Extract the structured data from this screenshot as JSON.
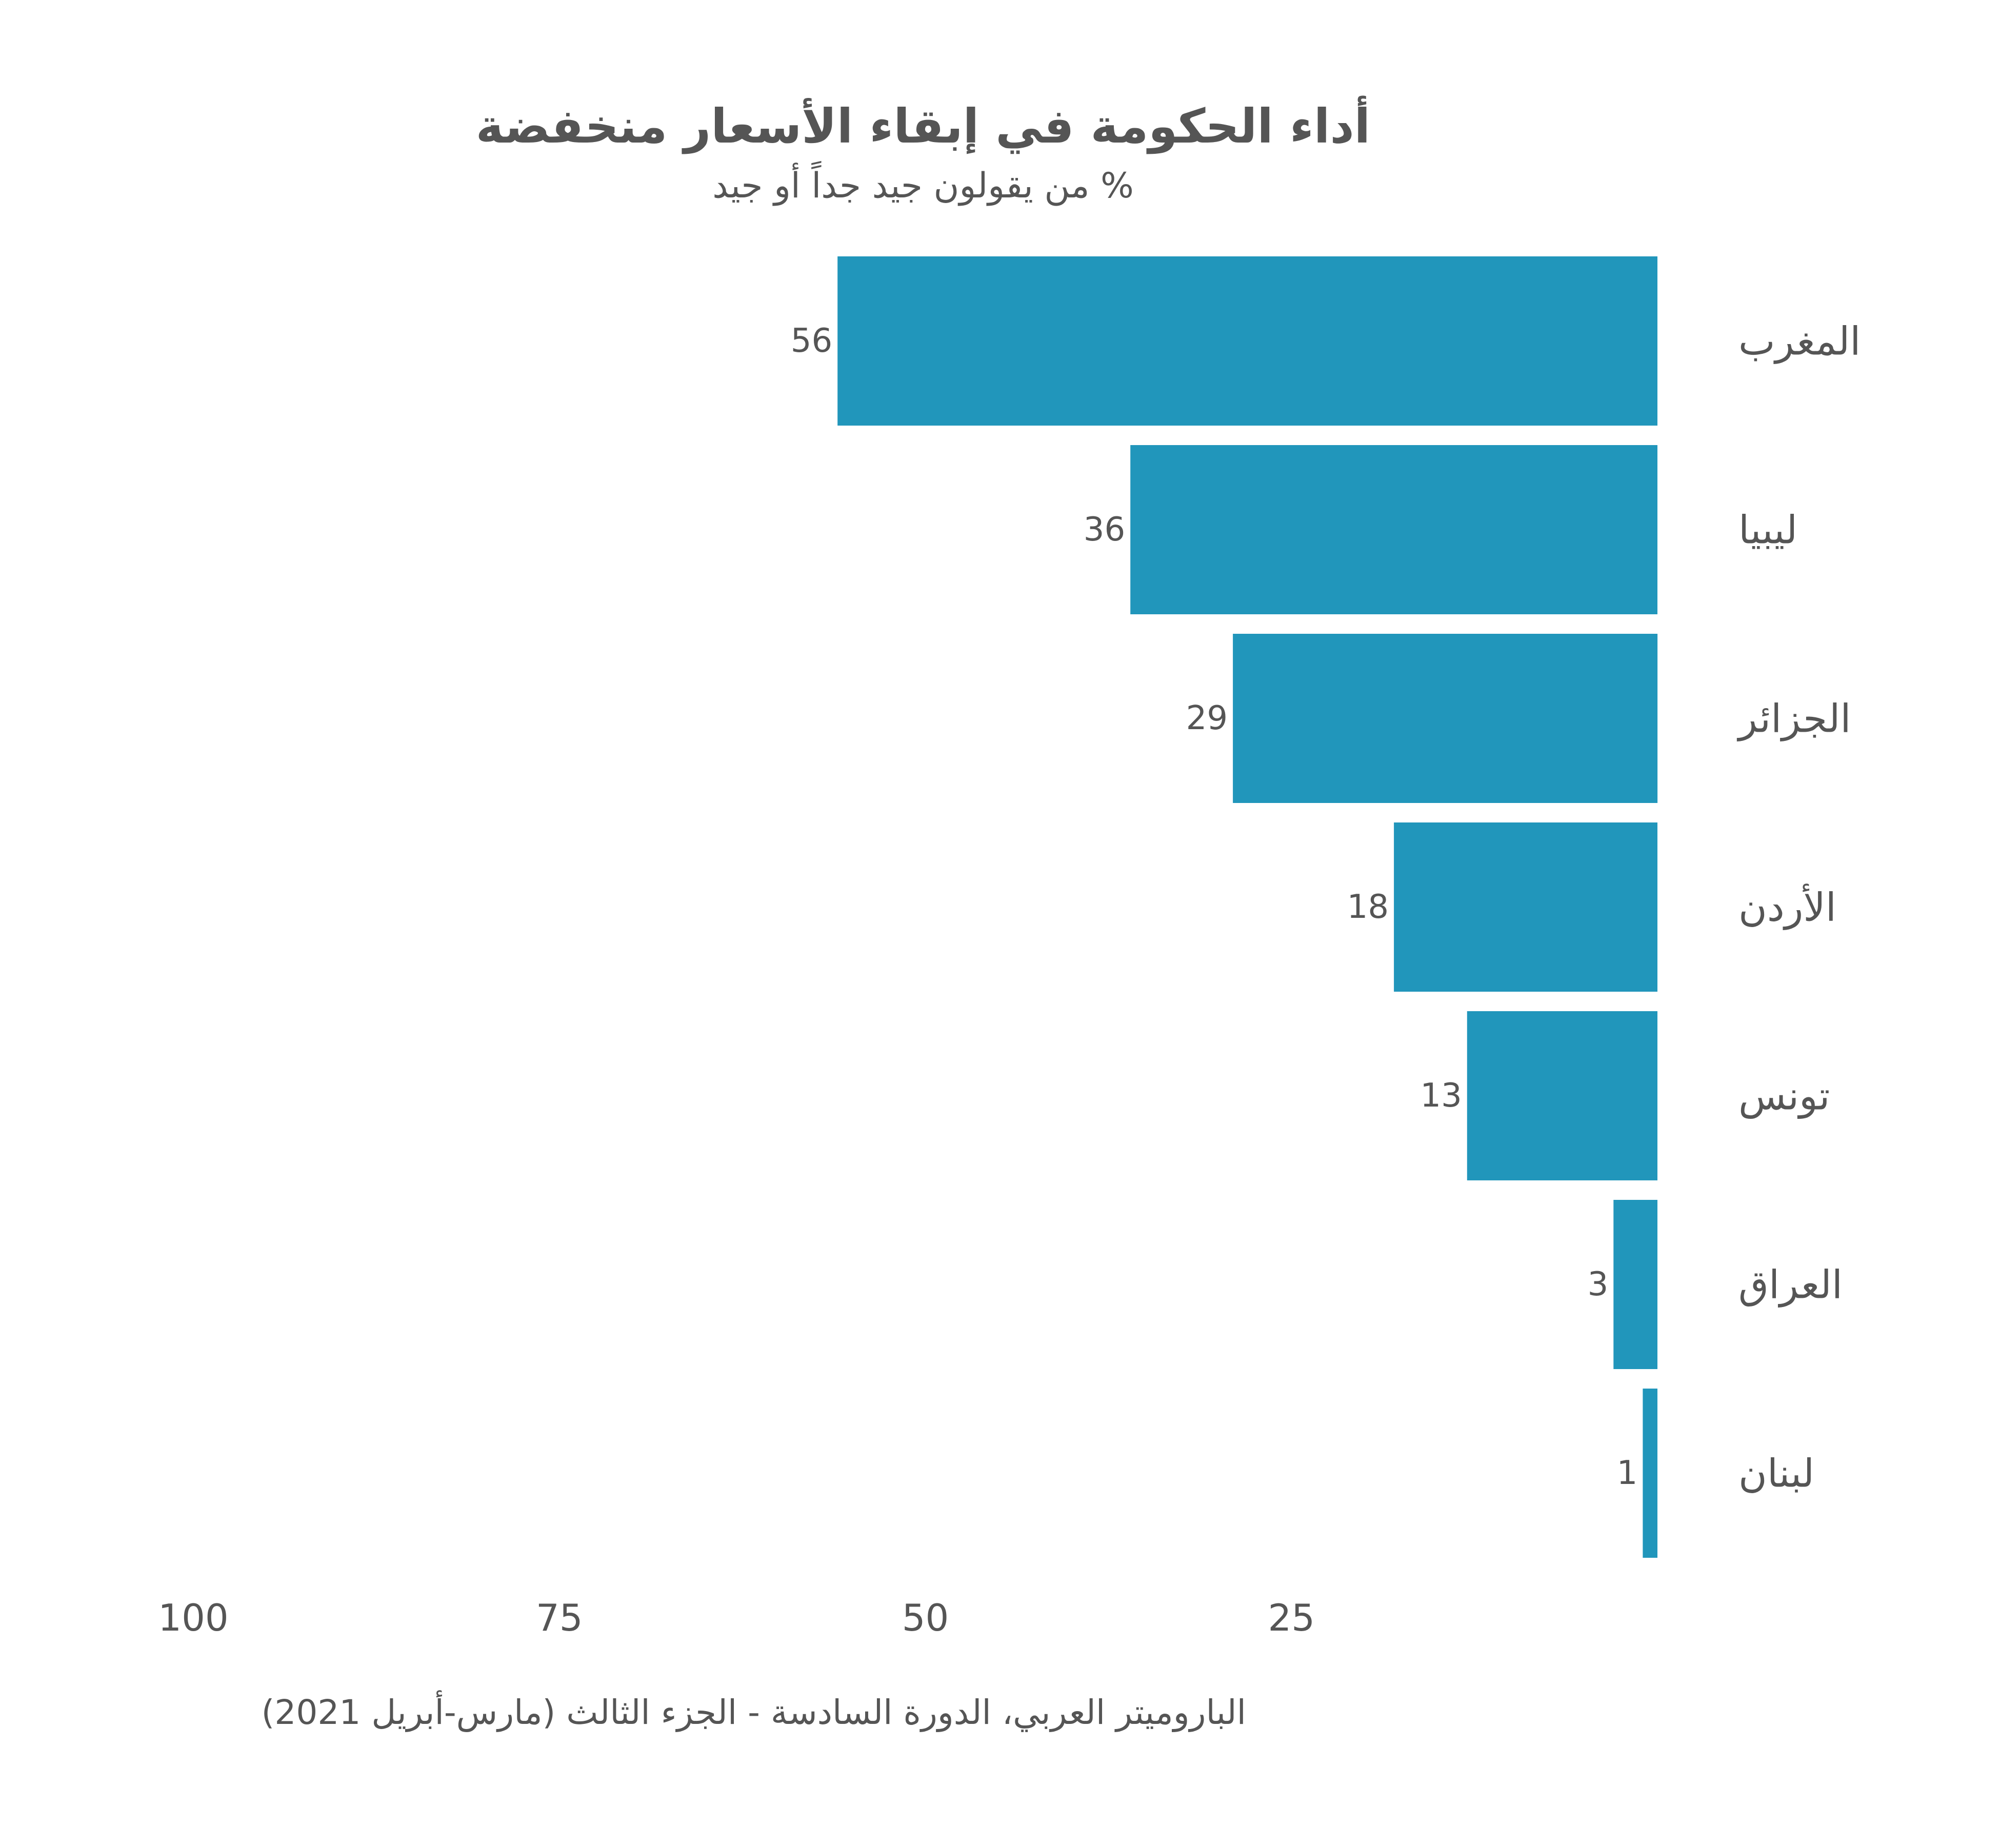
{
  "chart_data": {
    "type": "bar",
    "orientation": "horizontal",
    "title": "أداء الحكومة في إبقاء الأسعار منخفضة",
    "subtitle": "% من يقولون جيد جداً أو جيد",
    "categories": [
      "المغرب",
      "ليبيا",
      "الجزائر",
      "الأردن",
      "تونس",
      "العراق",
      "لبنان"
    ],
    "values": [
      56,
      36,
      29,
      18,
      13,
      3,
      1
    ],
    "x_ticks": [
      100,
      75,
      50,
      25
    ],
    "xlim": [
      0,
      100
    ],
    "x_reversed": true,
    "xlabel": "",
    "ylabel": "",
    "grid": false,
    "legend": "none",
    "source": "الباروميتر العربي، الدورة السادسة - الجزء الثالث (مارس-أبريل 2021)",
    "colors": {
      "bar": "#2196bb",
      "text": "#555555",
      "background": "#ffffff"
    }
  }
}
